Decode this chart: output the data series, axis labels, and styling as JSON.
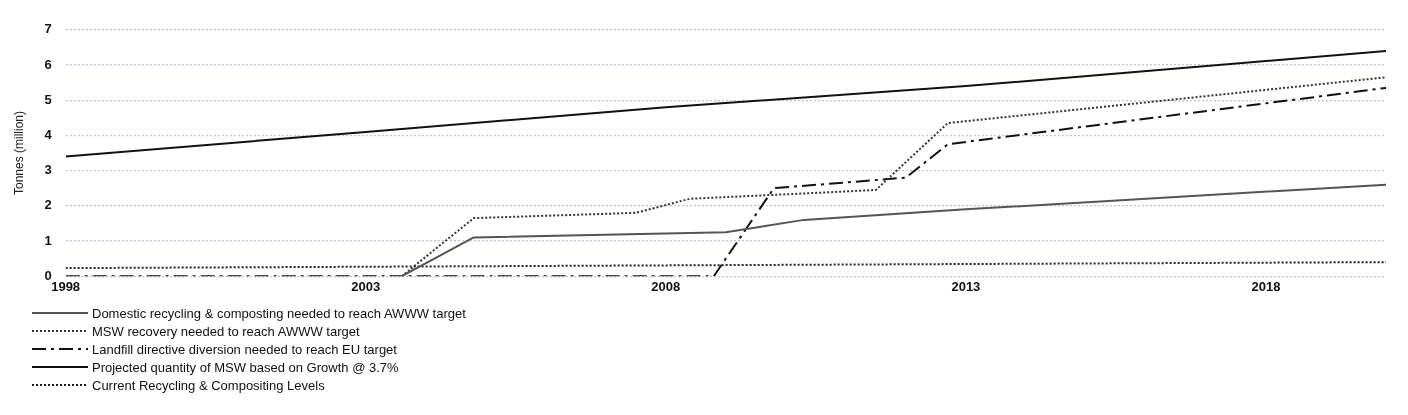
{
  "chart_data": {
    "type": "line",
    "ylabel": "Tonnes (million)",
    "xlim": [
      1998,
      2020
    ],
    "xticks": [
      1998,
      2003,
      2008,
      2013,
      2018
    ],
    "ylim": [
      0,
      7
    ],
    "yticks": [
      0,
      1,
      2,
      3,
      4,
      5,
      6,
      7
    ],
    "grid": "y",
    "legend": "bottom",
    "marker": "none",
    "series": [
      {
        "name": "Domestic recycling & composting needed to reach AWWW target",
        "color": "#555555",
        "line_style": "solid",
        "x": [
          2003.6,
          2004.8,
          2009,
          2010.3,
          2013,
          2020
        ],
        "values": [
          0,
          1.1,
          1.25,
          1.6,
          1.9,
          2.6
        ]
      },
      {
        "name": "MSW recovery needed to reach AWWW target",
        "color": "#333333",
        "line_style": "dotted",
        "x": [
          2003.6,
          2004.8,
          2007.5,
          2008.4,
          2010.3,
          2011.5,
          2012.7,
          2020
        ],
        "values": [
          0,
          1.65,
          1.8,
          2.2,
          2.35,
          2.45,
          4.35,
          5.65
        ]
      },
      {
        "name": "Landfill directive diversion needed to reach EU target",
        "color": "#111111",
        "line_style": "dashed",
        "x": [
          1998,
          2008.8,
          2009.8,
          2012,
          2012.7,
          2020
        ],
        "values": [
          0,
          0,
          2.5,
          2.8,
          3.75,
          5.35
        ]
      },
      {
        "name": "Projected quantity of MSW based on Growth @ 3.7%",
        "color": "#111111",
        "line_style": "solid",
        "x": [
          1998,
          2003,
          2008,
          2013,
          2020
        ],
        "values": [
          3.4,
          4.1,
          4.8,
          5.4,
          6.4
        ]
      },
      {
        "name": "Current Recycling & Compositing Levels",
        "color": "#222222",
        "line_style": "dotted",
        "x": [
          1998,
          2020
        ],
        "values": [
          0.23,
          0.4
        ]
      }
    ]
  }
}
